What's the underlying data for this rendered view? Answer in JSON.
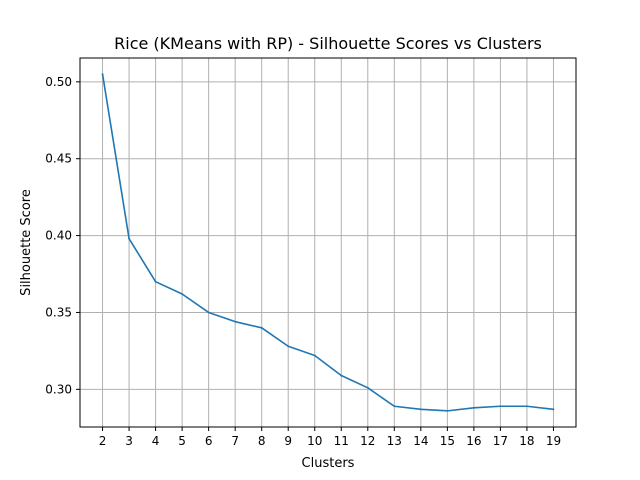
{
  "chart_data": {
    "type": "line",
    "title": "Rice (KMeans with RP) - Silhouette Scores vs Clusters",
    "xlabel": "Clusters",
    "ylabel": "Silhouette Score",
    "x": [
      2,
      3,
      4,
      5,
      6,
      7,
      8,
      9,
      10,
      11,
      12,
      13,
      14,
      15,
      16,
      17,
      18,
      19
    ],
    "series": [
      {
        "name": "",
        "color": "#1f77b4",
        "values": [
          0.505,
          0.398,
          0.37,
          0.362,
          0.35,
          0.344,
          0.34,
          0.328,
          0.322,
          0.309,
          0.301,
          0.289,
          0.287,
          0.286,
          0.288,
          0.289,
          0.289,
          0.287
        ]
      }
    ],
    "xlim": [
      1.15,
      19.85
    ],
    "ylim": [
      0.2755,
      0.5155
    ],
    "xticks": [
      2,
      3,
      4,
      5,
      6,
      7,
      8,
      9,
      10,
      11,
      12,
      13,
      14,
      15,
      16,
      17,
      18,
      19
    ],
    "yticks": [
      0.3,
      0.35,
      0.4,
      0.45,
      0.5
    ],
    "ytick_labels": [
      "0.30",
      "0.35",
      "0.40",
      "0.45",
      "0.50"
    ],
    "grid": true,
    "legend": "none"
  }
}
